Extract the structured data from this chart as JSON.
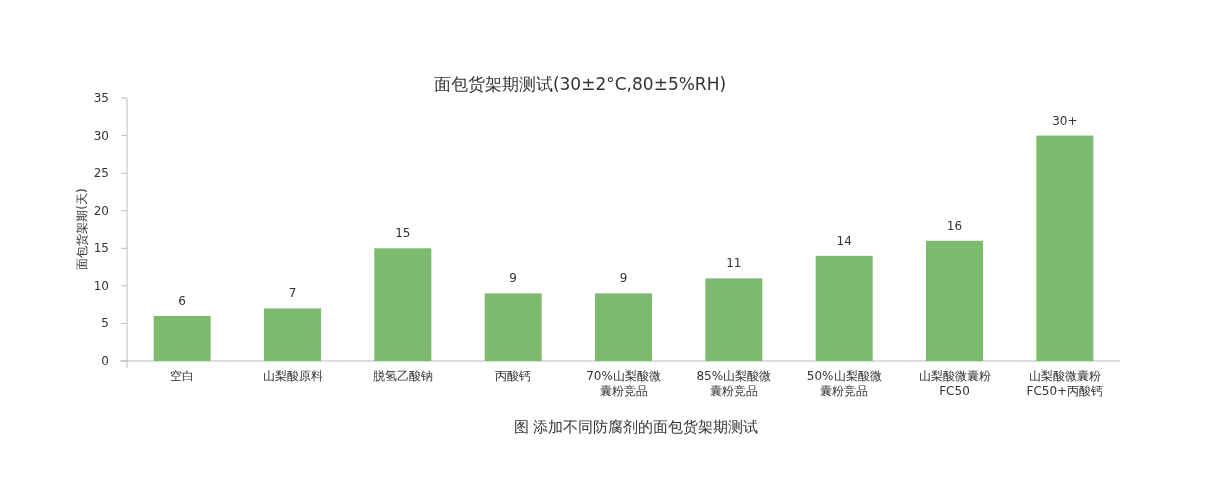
{
  "chart_data": {
    "type": "bar",
    "title": "面包货架期测试(30±2°C,80±5%RH)",
    "ylabel": "面包货架期(天)",
    "categories": [
      "空白",
      "山梨酸原料",
      "脱氢乙酸钠",
      "丙酸钙",
      "70%山梨酸微囊粉竞品",
      "85%山梨酸微囊粉竞品",
      "50%山梨酸微囊粉竞品",
      "山梨酸微囊粉FC50",
      "山梨酸微囊粉FC50+丙酸钙"
    ],
    "values": [
      6,
      7,
      15,
      9,
      9,
      11,
      14,
      16,
      30
    ],
    "value_labels": [
      "6",
      "7",
      "15",
      "9",
      "9",
      "11",
      "14",
      "16",
      "30+"
    ],
    "color": "#7cba6e",
    "ylim": [
      0,
      35
    ],
    "yticks": [
      0,
      5,
      10,
      15,
      20,
      25,
      30,
      35
    ],
    "grid": false,
    "annotations": [
      "图 添加不同防腐剂的面包货架期测试"
    ]
  }
}
